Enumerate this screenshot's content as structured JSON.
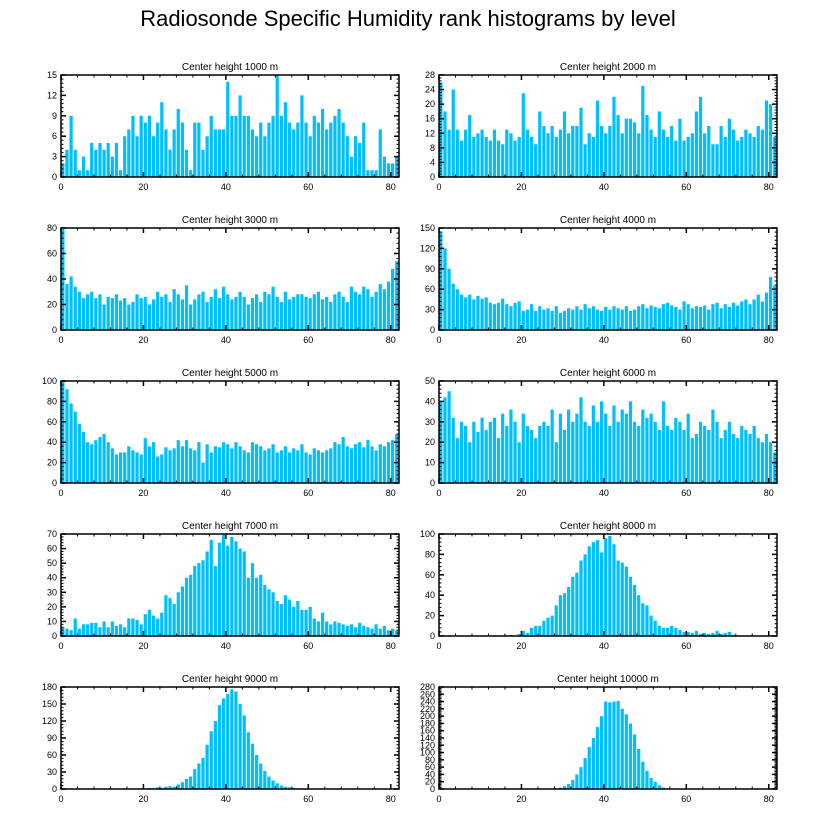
{
  "title": "Radiosonde Specific Humidity rank histograms by level",
  "colors": {
    "bar": "#00BFFF",
    "axis": "#000000"
  },
  "chart_data": [
    {
      "type": "bar",
      "title": "Center height 1000 m",
      "xlim": [
        0,
        82
      ],
      "xticks": [
        0,
        20,
        40,
        60,
        80
      ],
      "ylim": [
        0,
        15
      ],
      "yticks": [
        0,
        3,
        6,
        9,
        12,
        15
      ],
      "values": [
        2,
        4,
        9,
        4,
        1,
        3,
        1,
        5,
        4,
        5,
        4,
        5,
        3,
        5,
        1,
        6,
        7,
        9,
        6,
        9,
        8,
        9,
        6,
        8,
        11,
        7,
        4,
        7,
        10,
        8,
        4,
        1,
        8,
        8,
        4,
        6,
        9,
        7,
        7,
        7,
        14,
        9,
        9,
        12,
        9,
        9,
        7,
        6,
        8,
        6,
        8,
        9,
        15,
        9,
        11,
        8,
        7,
        8,
        12,
        8,
        6,
        9,
        8,
        10,
        7,
        8,
        9,
        10,
        8,
        6,
        3,
        6,
        5,
        8,
        1,
        1,
        1,
        7,
        3,
        2,
        2,
        3
      ]
    },
    {
      "type": "bar",
      "title": "Center height 2000 m",
      "xlim": [
        0,
        82
      ],
      "xticks": [
        0,
        20,
        40,
        60,
        80
      ],
      "ylim": [
        0,
        28
      ],
      "yticks": [
        0,
        4,
        8,
        12,
        16,
        20,
        24,
        28
      ],
      "values": [
        26,
        18,
        13,
        24,
        13,
        10,
        13,
        17,
        11,
        12,
        13,
        11,
        10,
        13,
        10,
        9,
        13,
        12,
        10,
        11,
        23,
        13,
        11,
        9,
        18,
        14,
        12,
        14,
        11,
        13,
        18,
        12,
        14,
        14,
        19,
        9,
        12,
        11,
        21,
        14,
        12,
        14,
        22,
        17,
        12,
        16,
        16,
        15,
        12,
        25,
        17,
        13,
        11,
        18,
        13,
        11,
        14,
        10,
        16,
        10,
        11,
        12,
        18,
        22,
        12,
        14,
        9,
        9,
        14,
        11,
        16,
        13,
        10,
        11,
        13,
        12,
        11,
        14,
        13,
        21,
        20,
        11
      ]
    },
    {
      "type": "bar",
      "title": "Center height 3000 m",
      "xlim": [
        0,
        82
      ],
      "xticks": [
        0,
        20,
        40,
        60,
        80
      ],
      "ylim": [
        0,
        80
      ],
      "yticks": [
        0,
        20,
        40,
        60,
        80
      ],
      "values": [
        80,
        36,
        42,
        34,
        30,
        25,
        28,
        30,
        25,
        28,
        20,
        26,
        25,
        28,
        23,
        25,
        20,
        22,
        28,
        25,
        26,
        20,
        24,
        30,
        26,
        28,
        22,
        32,
        28,
        24,
        35,
        20,
        24,
        28,
        30,
        22,
        26,
        32,
        25,
        34,
        28,
        24,
        26,
        30,
        26,
        20,
        25,
        28,
        22,
        30,
        28,
        34,
        26,
        22,
        30,
        24,
        26,
        28,
        28,
        26,
        25,
        28,
        30,
        24,
        26,
        22,
        28,
        30,
        26,
        22,
        34,
        30,
        28,
        34,
        32,
        26,
        30,
        36,
        32,
        38,
        48,
        54
      ]
    },
    {
      "type": "bar",
      "title": "Center height 4000 m",
      "xlim": [
        0,
        82
      ],
      "xticks": [
        0,
        20,
        40,
        60,
        80
      ],
      "ylim": [
        0,
        150
      ],
      "yticks": [
        0,
        30,
        60,
        90,
        120,
        150
      ],
      "values": [
        145,
        120,
        90,
        68,
        60,
        52,
        48,
        52,
        45,
        50,
        46,
        48,
        40,
        38,
        40,
        46,
        38,
        35,
        40,
        42,
        28,
        30,
        38,
        28,
        35,
        30,
        32,
        28,
        35,
        25,
        28,
        32,
        30,
        35,
        30,
        38,
        32,
        35,
        30,
        28,
        34,
        30,
        35,
        32,
        30,
        35,
        28,
        30,
        35,
        38,
        32,
        36,
        34,
        32,
        38,
        40,
        36,
        34,
        30,
        42,
        38,
        32,
        35,
        34,
        36,
        30,
        38,
        40,
        32,
        38,
        34,
        40,
        36,
        42,
        45,
        38,
        45,
        52,
        42,
        55,
        78,
        65
      ]
    },
    {
      "type": "bar",
      "title": "Center height 5000 m",
      "xlim": [
        0,
        82
      ],
      "xticks": [
        0,
        20,
        40,
        60,
        80
      ],
      "ylim": [
        0,
        100
      ],
      "yticks": [
        0,
        20,
        40,
        60,
        80,
        100
      ],
      "values": [
        100,
        92,
        78,
        70,
        58,
        50,
        40,
        38,
        42,
        45,
        48,
        40,
        34,
        28,
        30,
        30,
        36,
        32,
        30,
        28,
        44,
        36,
        40,
        26,
        28,
        35,
        32,
        34,
        42,
        36,
        42,
        34,
        32,
        40,
        20,
        38,
        30,
        36,
        35,
        40,
        38,
        34,
        40,
        36,
        32,
        30,
        40,
        38,
        36,
        32,
        34,
        38,
        30,
        32,
        36,
        30,
        34,
        32,
        38,
        30,
        28,
        34,
        32,
        30,
        32,
        34,
        40,
        38,
        45,
        36,
        34,
        38,
        40,
        35,
        42,
        36,
        32,
        38,
        36,
        40,
        42,
        48
      ]
    },
    {
      "type": "bar",
      "title": "Center height 6000 m",
      "xlim": [
        0,
        82
      ],
      "xticks": [
        0,
        20,
        40,
        60,
        80
      ],
      "ylim": [
        0,
        50
      ],
      "yticks": [
        0,
        10,
        20,
        30,
        40,
        50
      ],
      "values": [
        40,
        42,
        45,
        32,
        22,
        30,
        28,
        20,
        30,
        25,
        32,
        26,
        30,
        32,
        22,
        34,
        28,
        36,
        30,
        20,
        34,
        28,
        26,
        22,
        28,
        30,
        28,
        36,
        20,
        34,
        26,
        36,
        30,
        34,
        42,
        30,
        28,
        38,
        30,
        40,
        34,
        28,
        38,
        30,
        36,
        34,
        40,
        30,
        28,
        36,
        32,
        34,
        30,
        26,
        40,
        28,
        26,
        32,
        30,
        26,
        34,
        22,
        24,
        30,
        28,
        26,
        36,
        30,
        22,
        26,
        30,
        24,
        22,
        28,
        26,
        24,
        28,
        22,
        20,
        24,
        20,
        15
      ]
    },
    {
      "type": "bar",
      "title": "Center height 7000 m",
      "xlim": [
        0,
        82
      ],
      "xticks": [
        0,
        20,
        40,
        60,
        80
      ],
      "ylim": [
        0,
        70
      ],
      "yticks": [
        0,
        10,
        20,
        30,
        40,
        50,
        60,
        70
      ],
      "values": [
        6,
        5,
        4,
        12,
        5,
        8,
        8,
        9,
        9,
        6,
        10,
        6,
        10,
        7,
        8,
        6,
        12,
        12,
        11,
        8,
        15,
        18,
        14,
        12,
        16,
        28,
        26,
        22,
        30,
        34,
        40,
        42,
        48,
        50,
        52,
        58,
        66,
        48,
        64,
        70,
        62,
        68,
        65,
        60,
        58,
        40,
        50,
        40,
        42,
        35,
        32,
        30,
        24,
        22,
        28,
        25,
        20,
        24,
        18,
        18,
        20,
        12,
        10,
        16,
        10,
        8,
        10,
        9,
        8,
        7,
        8,
        6,
        9,
        7,
        6,
        5,
        8,
        5,
        7,
        4,
        5,
        4
      ]
    },
    {
      "type": "bar",
      "title": "Center height 8000 m",
      "xlim": [
        0,
        82
      ],
      "xticks": [
        0,
        20,
        40,
        60,
        80
      ],
      "ylim": [
        0,
        100
      ],
      "yticks": [
        0,
        20,
        40,
        60,
        80,
        100
      ],
      "values": [
        0,
        0,
        0,
        0,
        0,
        0,
        0,
        0,
        0,
        0,
        0,
        0,
        0,
        0,
        0,
        0,
        0,
        1,
        0,
        2,
        5,
        3,
        8,
        10,
        10,
        15,
        18,
        20,
        30,
        40,
        42,
        48,
        58,
        62,
        74,
        80,
        88,
        92,
        94,
        82,
        96,
        98,
        90,
        74,
        72,
        68,
        58,
        50,
        40,
        32,
        30,
        20,
        15,
        10,
        8,
        8,
        10,
        8,
        6,
        4,
        4,
        3,
        5,
        2,
        3,
        2,
        3,
        5,
        2,
        3,
        4,
        1,
        0,
        0,
        0,
        0,
        0,
        0,
        0,
        0,
        0,
        0
      ]
    },
    {
      "type": "bar",
      "title": "Center height 9000 m",
      "xlim": [
        0,
        82
      ],
      "xticks": [
        0,
        20,
        40,
        60,
        80
      ],
      "ylim": [
        0,
        180
      ],
      "yticks": [
        0,
        30,
        60,
        90,
        120,
        150,
        180
      ],
      "values": [
        0,
        0,
        0,
        0,
        0,
        0,
        0,
        0,
        0,
        0,
        0,
        0,
        0,
        0,
        0,
        0,
        0,
        0,
        0,
        0,
        1,
        2,
        1,
        3,
        2,
        4,
        5,
        4,
        8,
        12,
        18,
        22,
        35,
        45,
        55,
        78,
        102,
        120,
        148,
        160,
        168,
        176,
        172,
        150,
        130,
        100,
        80,
        60,
        45,
        32,
        22,
        15,
        10,
        6,
        4,
        3,
        2,
        1,
        1,
        0,
        0,
        0,
        0,
        0,
        0,
        0,
        0,
        0,
        0,
        0,
        0,
        0,
        0,
        0,
        0,
        0,
        0,
        0,
        0,
        0,
        0,
        0
      ]
    },
    {
      "type": "bar",
      "title": "Center height 10000 m",
      "xlim": [
        0,
        82
      ],
      "xticks": [
        0,
        20,
        40,
        60,
        80
      ],
      "ylim": [
        0,
        280
      ],
      "yticks": [
        0,
        20,
        40,
        60,
        80,
        100,
        120,
        140,
        160,
        180,
        200,
        220,
        240,
        260,
        280
      ],
      "values": [
        0,
        0,
        0,
        0,
        0,
        0,
        0,
        0,
        0,
        0,
        0,
        0,
        0,
        0,
        0,
        0,
        0,
        0,
        0,
        0,
        0,
        0,
        0,
        0,
        0,
        0,
        0,
        0,
        2,
        4,
        8,
        14,
        25,
        40,
        60,
        85,
        115,
        140,
        170,
        200,
        240,
        238,
        240,
        242,
        220,
        205,
        180,
        150,
        110,
        75,
        50,
        30,
        20,
        10,
        4,
        2,
        1,
        0,
        0,
        0,
        0,
        0,
        0,
        0,
        0,
        0,
        0,
        0,
        0,
        0,
        0,
        0,
        0,
        0,
        0,
        0,
        0,
        0,
        0,
        0,
        0,
        0
      ]
    }
  ]
}
